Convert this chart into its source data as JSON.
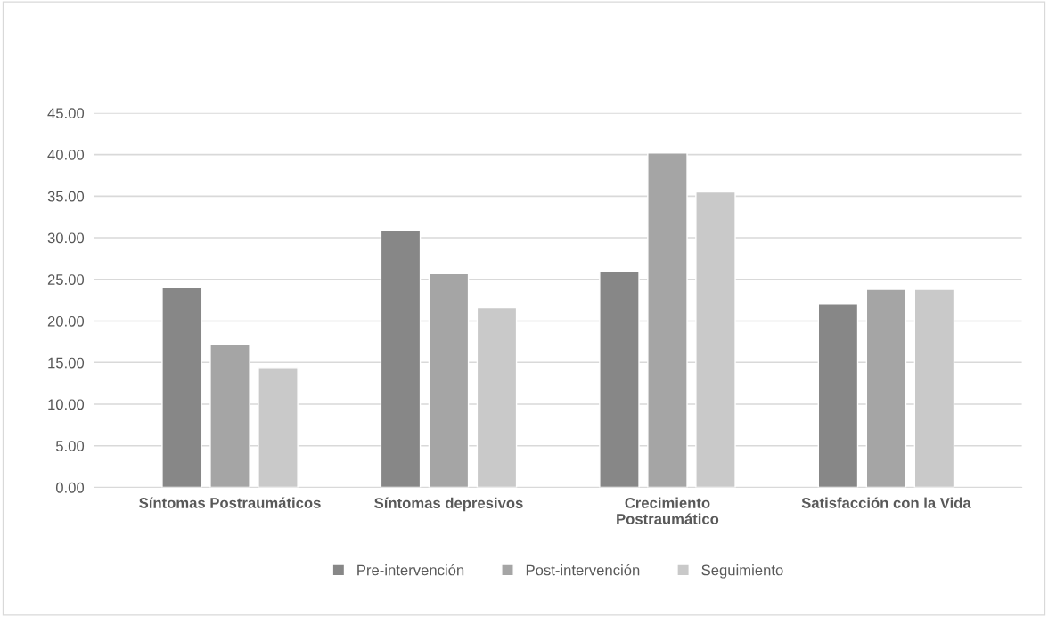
{
  "chart_data": {
    "type": "bar",
    "categories": [
      "Síntomas Postraumáticos",
      "Síntomas depresivos",
      "Crecimiento\nPostraumático",
      "Satisfacción con la Vida"
    ],
    "series": [
      {
        "name": "Pre-intervención",
        "color": "#878787",
        "values": [
          24.1,
          30.9,
          25.9,
          22.0
        ]
      },
      {
        "name": "Post-intervención",
        "color": "#a5a5a5",
        "values": [
          17.2,
          25.7,
          40.2,
          23.8
        ]
      },
      {
        "name": "Seguimiento",
        "color": "#c9c9c9",
        "values": [
          14.4,
          21.6,
          35.5,
          23.8
        ]
      }
    ],
    "ylim": [
      0,
      45
    ],
    "yticks": [
      {
        "value": 0,
        "label": "0.00"
      },
      {
        "value": 5,
        "label": "5.00"
      },
      {
        "value": 10,
        "label": "10.00"
      },
      {
        "value": 15,
        "label": "15.00"
      },
      {
        "value": 20,
        "label": "20.00"
      },
      {
        "value": 25,
        "label": "25.00"
      },
      {
        "value": 30,
        "label": "30.00"
      },
      {
        "value": 35,
        "label": "35.00"
      },
      {
        "value": 40,
        "label": "40.00"
      },
      {
        "value": 45,
        "label": "45.00"
      }
    ],
    "grid": "y",
    "legend": "bottom"
  }
}
